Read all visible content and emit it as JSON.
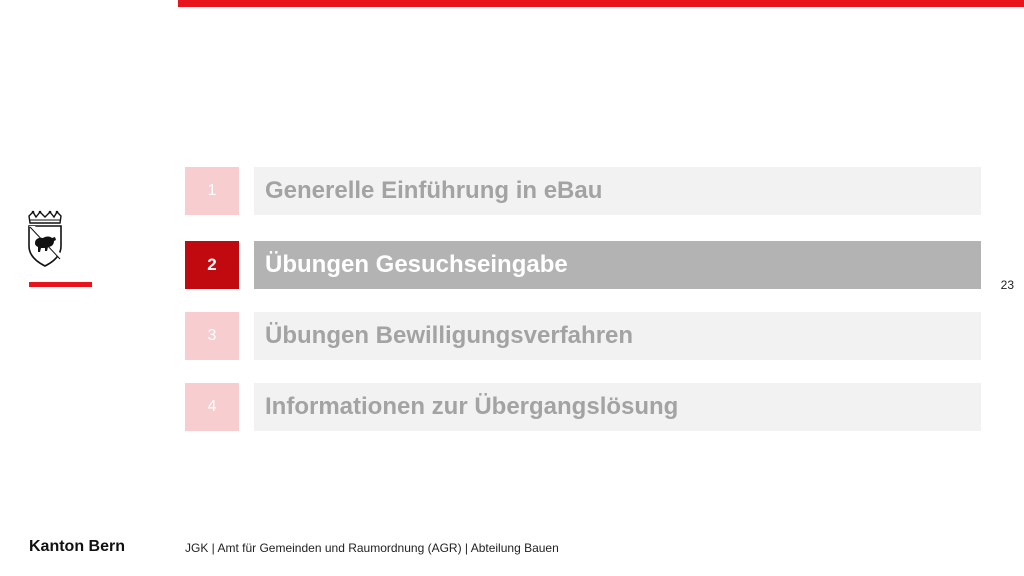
{
  "header": {
    "accent_color": "#e8141b"
  },
  "logo": {
    "name": "bern-coat-of-arms-icon"
  },
  "agenda": {
    "items": [
      {
        "number": "1",
        "label": "Generelle Einführung in eBau",
        "active": false
      },
      {
        "number": "2",
        "label": "Übungen Gesuchseingabe",
        "active": true
      },
      {
        "number": "3",
        "label": "Übungen Bewilligungsverfahren",
        "active": false
      },
      {
        "number": "4",
        "label": "Informationen zur Übergangslösung",
        "active": false
      }
    ],
    "colors": {
      "number_inactive": "#f7cdd0",
      "number_active": "#c00a10",
      "label_inactive": "#f2f2f2",
      "label_active": "#b3b3b3"
    }
  },
  "page_number": "23",
  "footer": {
    "brand": "Kanton Bern",
    "text": "JGK | Amt für Gemeinden und Raumordnung (AGR)  | Abteilung Bauen"
  }
}
